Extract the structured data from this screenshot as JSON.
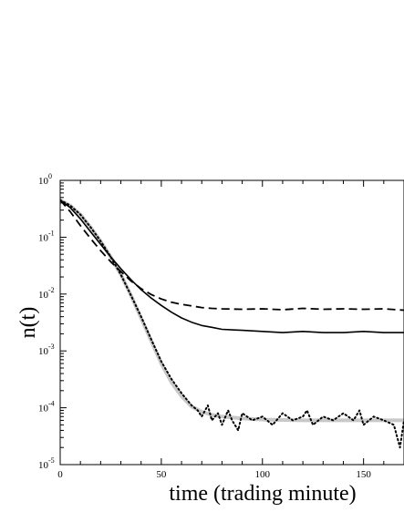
{
  "chart_data": {
    "type": "line",
    "title": "",
    "xlabel": "time (trading minute)",
    "ylabel": "n(t)",
    "xlim": [
      0,
      170
    ],
    "ylim": [
      1e-05,
      1
    ],
    "y_scale": "log",
    "grid": false,
    "legend": "none",
    "x_ticks": [
      {
        "value": 0,
        "label": "0"
      },
      {
        "value": 50,
        "label": "50"
      },
      {
        "value": 100,
        "label": "100"
      },
      {
        "value": 150,
        "label": "150"
      }
    ],
    "y_ticks": [
      {
        "value": 1e-05,
        "base": "10",
        "exp": "-5"
      },
      {
        "value": 0.0001,
        "base": "10",
        "exp": "-4"
      },
      {
        "value": 0.001,
        "base": "10",
        "exp": "-3"
      },
      {
        "value": 0.01,
        "base": "10",
        "exp": "-2"
      },
      {
        "value": 0.1,
        "base": "10",
        "exp": "-1"
      },
      {
        "value": 1,
        "base": "10",
        "exp": "0"
      }
    ],
    "series": [
      {
        "style": "dashed",
        "color": "#000000",
        "x": [
          0,
          5,
          10,
          15,
          20,
          25,
          30,
          35,
          40,
          45,
          50,
          55,
          60,
          65,
          70,
          75,
          80,
          90,
          100,
          110,
          120,
          130,
          140,
          150,
          160,
          170
        ],
        "y": [
          0.45,
          0.28,
          0.16,
          0.095,
          0.058,
          0.037,
          0.025,
          0.017,
          0.0125,
          0.0098,
          0.0082,
          0.0072,
          0.0066,
          0.0062,
          0.0058,
          0.0056,
          0.0055,
          0.0054,
          0.0055,
          0.0053,
          0.0056,
          0.0054,
          0.0055,
          0.0054,
          0.0055,
          0.0052
        ]
      },
      {
        "style": "solid",
        "color": "#000000",
        "x": [
          0,
          5,
          10,
          15,
          20,
          25,
          30,
          35,
          40,
          45,
          50,
          55,
          60,
          65,
          70,
          75,
          80,
          90,
          100,
          110,
          120,
          130,
          140,
          150,
          160,
          170
        ],
        "y": [
          0.45,
          0.33,
          0.21,
          0.125,
          0.075,
          0.045,
          0.028,
          0.018,
          0.012,
          0.0085,
          0.0063,
          0.0048,
          0.0038,
          0.0032,
          0.0028,
          0.0026,
          0.0024,
          0.0023,
          0.0022,
          0.0021,
          0.0022,
          0.0021,
          0.0021,
          0.0022,
          0.0021,
          0.0021
        ]
      },
      {
        "style": "dotted",
        "color": "#000000",
        "x": [
          0,
          5,
          10,
          15,
          20,
          25,
          30,
          35,
          40,
          45,
          50,
          55,
          60,
          65,
          68,
          70,
          73,
          75,
          78,
          80,
          83,
          85,
          88,
          90,
          95,
          100,
          105,
          110,
          115,
          120,
          122,
          125,
          130,
          135,
          140,
          145,
          148,
          150,
          155,
          160,
          165,
          168,
          170
        ],
        "y": [
          0.45,
          0.36,
          0.25,
          0.15,
          0.085,
          0.045,
          0.022,
          0.0095,
          0.004,
          0.0016,
          0.00065,
          0.00032,
          0.00018,
          0.00011,
          9e-05,
          7e-05,
          0.00011,
          6e-05,
          8e-05,
          5e-05,
          9e-05,
          6e-05,
          4e-05,
          8e-05,
          6e-05,
          7e-05,
          5e-05,
          8e-05,
          6e-05,
          7e-05,
          9e-05,
          5e-05,
          7e-05,
          6e-05,
          8e-05,
          6e-05,
          9e-05,
          5e-05,
          7e-05,
          6e-05,
          5e-05,
          2e-05,
          6e-05
        ]
      },
      {
        "style": "solid-thick",
        "color": "#c8c8c8",
        "x": [
          0,
          5,
          10,
          15,
          20,
          25,
          30,
          35,
          40,
          45,
          50,
          55,
          60,
          65,
          70,
          75,
          80,
          90,
          100,
          120,
          140,
          160,
          170
        ],
        "y": [
          0.45,
          0.36,
          0.25,
          0.15,
          0.085,
          0.045,
          0.022,
          0.0095,
          0.0038,
          0.0015,
          0.0006,
          0.00028,
          0.00016,
          0.000105,
          8.5e-05,
          7.5e-05,
          7e-05,
          6.5e-05,
          6.2e-05,
          6e-05,
          6e-05,
          6e-05,
          6e-05
        ]
      }
    ]
  }
}
